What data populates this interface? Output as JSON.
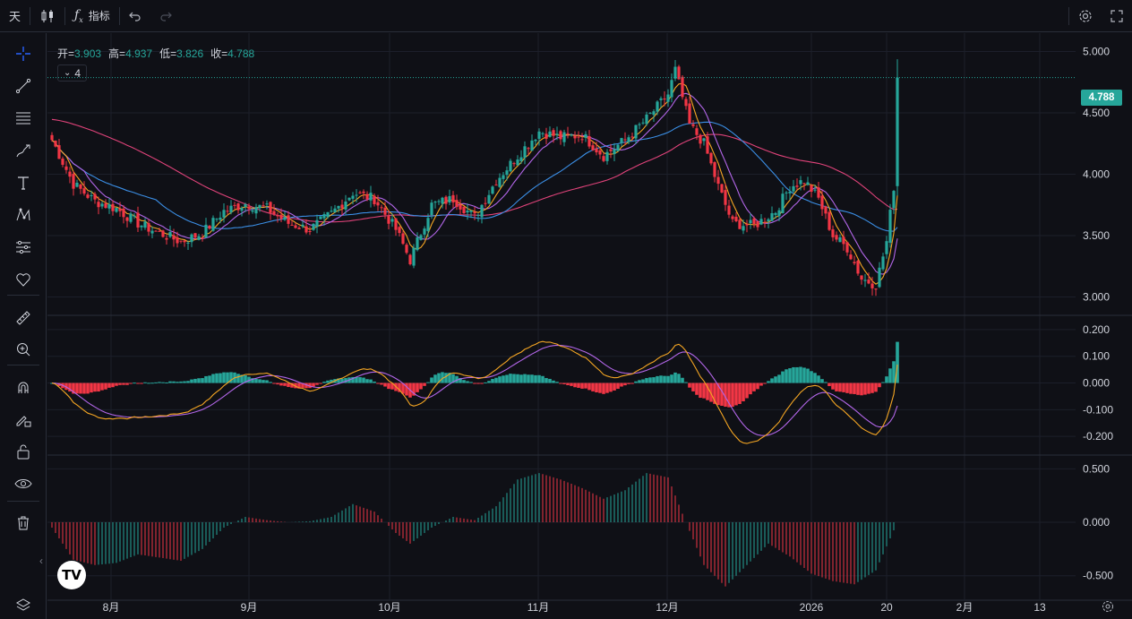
{
  "toolbar": {
    "interval": "天",
    "indicators_label": "指标"
  },
  "legend": {
    "open_label": "开=",
    "open": "3.903",
    "high_label": "高=",
    "high": "4.937",
    "low_label": "低=",
    "low": "3.826",
    "close_label": "收=",
    "close": "4.788",
    "indicator_count": "4"
  },
  "last_price": "4.788",
  "price_axis": [
    "5.000",
    "4.500",
    "4.000",
    "3.500",
    "3.000"
  ],
  "macd_axis": [
    "0.200",
    "0.100",
    "0.000",
    "-0.100",
    "-0.200"
  ],
  "osc_axis": [
    "0.500",
    "0.000",
    "-0.500"
  ],
  "time_axis": [
    "8月",
    "9月",
    "10月",
    "11月",
    "12月",
    "2026",
    "20",
    "2月",
    "13"
  ],
  "logo_text": "TV",
  "colors": {
    "up": "#26a69a",
    "down": "#f23645",
    "ma_fast": "#f5a623",
    "ma_mid": "#b266e8",
    "ma_slow": "#3b8fe6",
    "ma_long": "#e0437a",
    "macd_line": "#b266e8",
    "signal_line": "#f5a623"
  },
  "chart_data": {
    "type": "candlestick",
    "last": {
      "open": 3.903,
      "high": 4.937,
      "low": 3.826,
      "close": 4.788
    },
    "ylim_price": [
      2.85,
      5.15
    ],
    "ylim_macd": [
      -0.27,
      0.25
    ],
    "ylim_osc": [
      -0.72,
      0.62
    ],
    "close_keypoints": [
      [
        0,
        4.28
      ],
      [
        6,
        3.92
      ],
      [
        12,
        3.78
      ],
      [
        18,
        3.72
      ],
      [
        24,
        3.6
      ],
      [
        30,
        3.52
      ],
      [
        36,
        3.45
      ],
      [
        42,
        3.52
      ],
      [
        48,
        3.7
      ],
      [
        54,
        3.76
      ],
      [
        60,
        3.72
      ],
      [
        66,
        3.6
      ],
      [
        72,
        3.55
      ],
      [
        78,
        3.68
      ],
      [
        84,
        3.85
      ],
      [
        90,
        3.8
      ],
      [
        96,
        3.55
      ],
      [
        100,
        3.3
      ],
      [
        106,
        3.75
      ],
      [
        112,
        3.8
      ],
      [
        118,
        3.65
      ],
      [
        124,
        3.95
      ],
      [
        130,
        4.15
      ],
      [
        136,
        4.35
      ],
      [
        142,
        4.3
      ],
      [
        148,
        4.32
      ],
      [
        154,
        4.15
      ],
      [
        160,
        4.28
      ],
      [
        166,
        4.45
      ],
      [
        172,
        4.65
      ],
      [
        174,
        4.85
      ],
      [
        178,
        4.4
      ],
      [
        182,
        4.25
      ],
      [
        186,
        3.9
      ],
      [
        190,
        3.6
      ],
      [
        196,
        3.58
      ],
      [
        202,
        3.7
      ],
      [
        206,
        3.9
      ],
      [
        210,
        3.95
      ],
      [
        214,
        3.8
      ],
      [
        218,
        3.5
      ],
      [
        222,
        3.4
      ],
      [
        226,
        3.15
      ],
      [
        230,
        3.1
      ],
      [
        233,
        3.45
      ],
      [
        235,
        3.9
      ],
      [
        236,
        4.788
      ]
    ],
    "osc_keypoints": [
      [
        0,
        -0.05
      ],
      [
        6,
        -0.35
      ],
      [
        12,
        -0.4
      ],
      [
        18,
        -0.38
      ],
      [
        24,
        -0.3
      ],
      [
        30,
        -0.33
      ],
      [
        36,
        -0.36
      ],
      [
        42,
        -0.25
      ],
      [
        48,
        -0.05
      ],
      [
        54,
        0.05
      ],
      [
        60,
        0.02
      ],
      [
        66,
        0.0
      ],
      [
        72,
        0.01
      ],
      [
        78,
        0.05
      ],
      [
        84,
        0.17
      ],
      [
        90,
        0.1
      ],
      [
        96,
        -0.1
      ],
      [
        100,
        -0.2
      ],
      [
        106,
        -0.05
      ],
      [
        112,
        0.05
      ],
      [
        118,
        0.02
      ],
      [
        124,
        0.15
      ],
      [
        130,
        0.4
      ],
      [
        136,
        0.46
      ],
      [
        142,
        0.4
      ],
      [
        148,
        0.32
      ],
      [
        154,
        0.22
      ],
      [
        160,
        0.3
      ],
      [
        166,
        0.46
      ],
      [
        172,
        0.42
      ],
      [
        176,
        0.08
      ],
      [
        182,
        -0.4
      ],
      [
        188,
        -0.6
      ],
      [
        194,
        -0.4
      ],
      [
        200,
        -0.2
      ],
      [
        206,
        -0.32
      ],
      [
        212,
        -0.48
      ],
      [
        218,
        -0.55
      ],
      [
        224,
        -0.58
      ],
      [
        230,
        -0.45
      ],
      [
        234,
        -0.15
      ],
      [
        236,
        0.0
      ]
    ]
  }
}
